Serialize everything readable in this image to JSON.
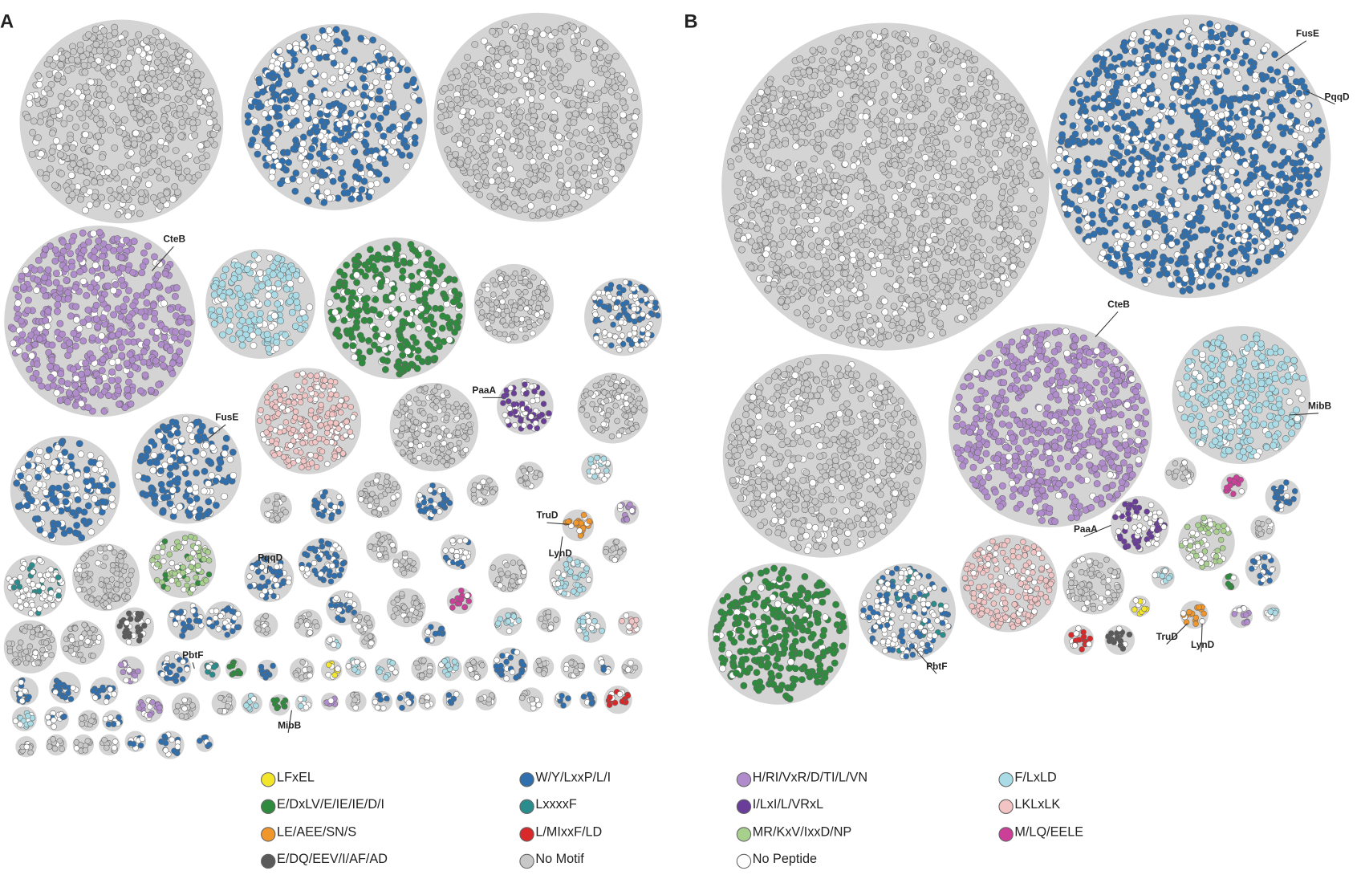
{
  "panels": [
    {
      "label": "A",
      "annotations": [
        {
          "label": "CteB"
        },
        {
          "label": "FusE"
        },
        {
          "label": "PaaA"
        },
        {
          "label": "TruD"
        },
        {
          "label": "LynD"
        },
        {
          "label": "PqqD"
        },
        {
          "label": "PbtF"
        },
        {
          "label": "MibB"
        }
      ]
    },
    {
      "label": "B",
      "annotations": [
        {
          "label": "FusE"
        },
        {
          "label": "PqqD"
        },
        {
          "label": "CteB"
        },
        {
          "label": "MibB"
        },
        {
          "label": "PaaA"
        },
        {
          "label": "TruD"
        },
        {
          "label": "LynD"
        },
        {
          "label": "PbtF"
        }
      ]
    }
  ],
  "legend": [
    {
      "label": "LFxEL",
      "color": "#f2e52a"
    },
    {
      "label": "E/DxLV/E/IE/IE/D/I",
      "color": "#2e8b3e"
    },
    {
      "label": "LE/AEE/SN/S",
      "color": "#f0962a"
    },
    {
      "label": "E/DQ/EEV/I/AF/AD",
      "color": "#5a5a5a"
    },
    {
      "label": "W/Y/LxxP/L/I",
      "color": "#2f6fae"
    },
    {
      "label": "LxxxxF",
      "color": "#2a8c8c"
    },
    {
      "label": "L/MIxxF/LD",
      "color": "#d8282a"
    },
    {
      "label": "No Motif",
      "color": "#c8c8c8"
    },
    {
      "label": "H/RI/VxR/D/TI/L/VN",
      "color": "#b08ccc"
    },
    {
      "label": "I/LxI/L/VRxL",
      "color": "#6a3d9a"
    },
    {
      "label": "MR/KxV/IxxD/NP",
      "color": "#a8d08d"
    },
    {
      "label": "No Peptide",
      "color": "#ffffff"
    },
    {
      "label": "F/LxLD",
      "color": "#a9dce6"
    },
    {
      "label": "LKLxLK",
      "color": "#f2c4c4"
    },
    {
      "label": "M/LQ/EELE",
      "color": "#cc3f99"
    }
  ]
}
